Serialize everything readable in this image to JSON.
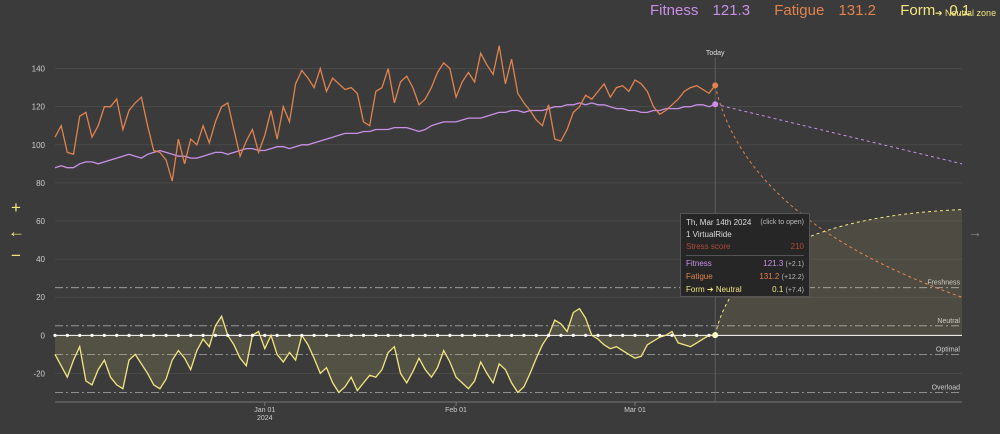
{
  "header": {
    "fitness_label": "Fitness",
    "fitness_value": "121.3",
    "fatigue_label": "Fatigue",
    "fatigue_value": "131.2",
    "form_label": "Form",
    "form_value": "0.1",
    "fitness_color": "#c990e8",
    "fatigue_color": "#e0834e",
    "form_color": "#f3e680"
  },
  "neutral_zone_label": "➔ Neutral zone",
  "controls": {
    "zoom_in": "+",
    "back": "←",
    "zoom_out": "−",
    "next": "→"
  },
  "tooltip": {
    "date": "Th, Mar 14th 2024",
    "hint": "(click to open)",
    "activity": "1 VirtualRide",
    "stress_label": "Stress score",
    "stress_value": "210",
    "fitness_label": "Fitness",
    "fitness_value": "121.3",
    "fitness_delta": "(+2.1)",
    "fatigue_label": "Fatigue",
    "fatigue_value": "131.2",
    "fatigue_delta": "(+12.2)",
    "form_label": "Form ➔ Neutral",
    "form_value": "0.1",
    "form_delta": "(+7.4)"
  },
  "chart_data": {
    "type": "line",
    "today_label": "Today",
    "x_ticks": [
      "Jan 01\n2024",
      "Feb 01",
      "Mar 01"
    ],
    "x_tick_days": [
      34,
      65,
      94
    ],
    "today_day": 107,
    "ylim": [
      -35,
      155
    ],
    "y_ticks": [
      140,
      120,
      100,
      80,
      60,
      40,
      20,
      0,
      -20
    ],
    "zones": [
      {
        "label": "Freshness",
        "value": 25
      },
      {
        "label": "Neutral",
        "value": 5
      },
      {
        "label": "Optimal",
        "value": -10
      },
      {
        "label": "Overload",
        "value": -30
      }
    ],
    "series": [
      {
        "name": "Fitness",
        "color": "#c990e8",
        "values": [
          88,
          89,
          88,
          88,
          90,
          91,
          91,
          90,
          91,
          92,
          93,
          94,
          95,
          94,
          93,
          95,
          96,
          97,
          96,
          95,
          94,
          94,
          93,
          93,
          94,
          95,
          96,
          96,
          95,
          96,
          97,
          98,
          98,
          97,
          97,
          98,
          99,
          99,
          98,
          99,
          100,
          100,
          101,
          102,
          103,
          104,
          105,
          106,
          106,
          106,
          107,
          107,
          108,
          108,
          108,
          109,
          109,
          109,
          108,
          107,
          108,
          110,
          111,
          112,
          112,
          112,
          113,
          114,
          114,
          114,
          115,
          116,
          117,
          117,
          118,
          118,
          117,
          118,
          118,
          118,
          119,
          120,
          120,
          121,
          121,
          122,
          121,
          122,
          121,
          121,
          120,
          119,
          119,
          118,
          118,
          117,
          117,
          118,
          118,
          119,
          119,
          119,
          120,
          120,
          121,
          121,
          120,
          121.3
        ]
      },
      {
        "name": "Fatigue",
        "color": "#e0834e",
        "values": [
          104,
          110,
          96,
          95,
          115,
          117,
          104,
          110,
          120,
          120,
          124,
          108,
          118,
          122,
          125,
          110,
          97,
          96,
          92,
          81,
          103,
          90,
          103,
          100,
          110,
          101,
          112,
          120,
          122,
          108,
          94,
          102,
          108,
          96,
          105,
          118,
          103,
          120,
          112,
          132,
          139,
          135,
          130,
          140,
          128,
          135,
          132,
          129,
          130,
          127,
          112,
          110,
          128,
          130,
          140,
          122,
          133,
          136,
          130,
          121,
          124,
          130,
          138,
          143,
          140,
          125,
          133,
          138,
          133,
          148,
          142,
          137,
          152,
          132,
          145,
          127,
          122,
          118,
          113,
          110,
          121,
          103,
          102,
          108,
          117,
          120,
          126,
          124,
          128,
          132,
          125,
          130,
          131,
          128,
          134,
          132,
          128,
          120,
          116,
          118,
          121,
          124,
          128,
          130,
          131,
          129,
          127,
          131.2
        ]
      },
      {
        "name": "Form",
        "color": "#f3e680",
        "values": [
          -10,
          -16,
          -22,
          -13,
          -6,
          -24,
          -26,
          -18,
          -13,
          -22,
          -26,
          -28,
          -13,
          -10,
          -15,
          -20,
          -26,
          -28,
          -23,
          -13,
          -8,
          -12,
          -18,
          -8,
          -2,
          -6,
          5,
          10,
          0,
          -5,
          -12,
          -16,
          0,
          2,
          -7,
          0,
          -10,
          -14,
          -9,
          -13,
          0,
          -5,
          -12,
          -20,
          -17,
          -25,
          -30,
          -27,
          -22,
          -29,
          -25,
          -21,
          -22,
          -18,
          -9,
          -6,
          -20,
          -25,
          -19,
          -12,
          -18,
          -22,
          -17,
          -8,
          -14,
          -22,
          -25,
          -28,
          -24,
          -14,
          -20,
          -25,
          -15,
          -18,
          -25,
          -30,
          -27,
          -20,
          -12,
          -5,
          0,
          8,
          6,
          2,
          12,
          14,
          9,
          0,
          -2,
          -5,
          -7,
          -6,
          -8,
          -10,
          -12,
          -11,
          -5,
          -3,
          -1,
          0,
          2,
          -4,
          -5,
          -6,
          -4,
          -2,
          0,
          0.1
        ]
      }
    ],
    "projection": {
      "fitness_end": 90,
      "fatigue_end": 20,
      "form_end": 66
    }
  }
}
